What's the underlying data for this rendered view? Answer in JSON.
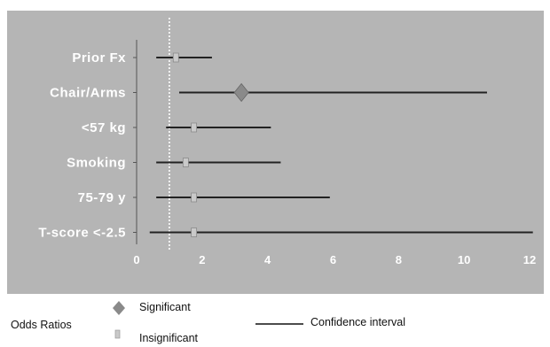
{
  "chart_data": {
    "type": "forest",
    "categories": [
      "Prior Fx",
      "Chair/Arms",
      "<57 kg",
      "Smoking",
      "75-79 y",
      "T-score <-2.5"
    ],
    "estimates": [
      1.2,
      3.2,
      1.75,
      1.5,
      1.75,
      1.75
    ],
    "ci_low": [
      0.6,
      1.3,
      0.9,
      0.6,
      0.6,
      0.4
    ],
    "ci_high": [
      2.3,
      10.7,
      4.1,
      4.4,
      5.9,
      12.1
    ],
    "significant": [
      false,
      true,
      false,
      false,
      false,
      false
    ],
    "reference_line": 1,
    "xlim": [
      0,
      12
    ],
    "xticks": [
      "0",
      "2",
      "4",
      "6",
      "8",
      "10",
      "12"
    ],
    "grid": false,
    "colors": {
      "panel": "#b5b5b5",
      "line": "#222222",
      "significant": "#8a8a8a",
      "insignificant": "#c9c9c9",
      "reference": "#ffffff"
    }
  },
  "legend": {
    "title": "Odds Ratios",
    "significant_label": "Significant",
    "insignificant_label": "Insignificant",
    "ci_label": "Confidence interval"
  }
}
